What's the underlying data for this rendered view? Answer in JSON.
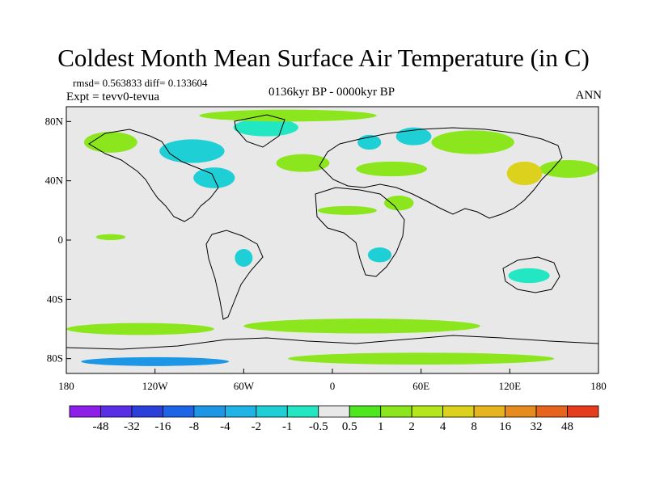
{
  "title": "Coldest Month Mean Surface Air Temperature (in C)",
  "stats": {
    "rmsd_diff": "rmsd= 0.563833 diff= 0.133604",
    "expt": "Expt = tevv0-tevua",
    "period": "0136kyr BP - 0000kyr BP",
    "season": "ANN"
  },
  "map": {
    "lat_ticks": [
      {
        "value": 80,
        "label": "80N"
      },
      {
        "value": 40,
        "label": "40N"
      },
      {
        "value": 0,
        "label": "0"
      },
      {
        "value": -40,
        "label": "40S"
      },
      {
        "value": -80,
        "label": "80S"
      }
    ],
    "lon_ticks": [
      {
        "value": -180,
        "label": "180"
      },
      {
        "value": -120,
        "label": "120W"
      },
      {
        "value": -60,
        "label": "60W"
      },
      {
        "value": 0,
        "label": "0"
      },
      {
        "value": 60,
        "label": "60E"
      },
      {
        "value": 120,
        "label": "120E"
      },
      {
        "value": 180,
        "label": "180"
      }
    ],
    "lat_range": [
      -90,
      90
    ],
    "lon_range": [
      -180,
      180
    ],
    "background_color": "#e8e8e8"
  },
  "legend": {
    "colors": [
      "#8c1fe8",
      "#5a2ee6",
      "#2b3fd9",
      "#1e64e6",
      "#1e96e6",
      "#1eb4e6",
      "#1ecfd6",
      "#23e6c3",
      "#e8e8e8",
      "#4ee61e",
      "#8ce61e",
      "#b4e61e",
      "#dcd21e",
      "#e6b41e",
      "#e68c1e",
      "#e6641e",
      "#e63c1e"
    ],
    "labels": [
      "-48",
      "-32",
      "-16",
      "-8",
      "-4",
      "-2",
      "-1",
      "-0.5",
      "0.5",
      "1",
      "2",
      "4",
      "8",
      "16",
      "32",
      "48"
    ]
  },
  "anomaly_regions": [
    {
      "id": "siberia-warm",
      "lon": 95,
      "lat": 66,
      "rx": 28,
      "ry": 8,
      "color": "#8ce61e"
    },
    {
      "id": "nw-russia-cold",
      "lon": 55,
      "lat": 70,
      "rx": 12,
      "ry": 6,
      "color": "#1ecfd6"
    },
    {
      "id": "scandinavia-cold",
      "lon": 25,
      "lat": 66,
      "rx": 8,
      "ry": 5,
      "color": "#1ecfd6"
    },
    {
      "id": "greenland-cold",
      "lon": -45,
      "lat": 76,
      "rx": 22,
      "ry": 6,
      "color": "#23e6c3"
    },
    {
      "id": "canada-cold",
      "lon": -95,
      "lat": 60,
      "rx": 22,
      "ry": 8,
      "color": "#1ecfd6"
    },
    {
      "id": "us-cold",
      "lon": -80,
      "lat": 42,
      "rx": 14,
      "ry": 7,
      "color": "#1ecfd6"
    },
    {
      "id": "alaska-warm",
      "lon": -150,
      "lat": 66,
      "rx": 18,
      "ry": 7,
      "color": "#8ce61e"
    },
    {
      "id": "arctic-warm",
      "lon": -30,
      "lat": 84,
      "rx": 60,
      "ry": 4,
      "color": "#8ce61e"
    },
    {
      "id": "n-atlantic-warm",
      "lon": -20,
      "lat": 52,
      "rx": 18,
      "ry": 6,
      "color": "#8ce61e"
    },
    {
      "id": "n-pacific-warm",
      "lon": 160,
      "lat": 48,
      "rx": 20,
      "ry": 6,
      "color": "#8ce61e"
    },
    {
      "id": "china-warm",
      "lon": 130,
      "lat": 45,
      "rx": 12,
      "ry": 8,
      "color": "#dcd21e"
    },
    {
      "id": "central-asia-warm",
      "lon": 40,
      "lat": 48,
      "rx": 24,
      "ry": 5,
      "color": "#8ce61e"
    },
    {
      "id": "sahara-warm",
      "lon": 10,
      "lat": 20,
      "rx": 20,
      "ry": 3,
      "color": "#8ce61e"
    },
    {
      "id": "arabia-warm",
      "lon": 45,
      "lat": 25,
      "rx": 10,
      "ry": 5,
      "color": "#8ce61e"
    },
    {
      "id": "e-africa-cold",
      "lon": 32,
      "lat": -10,
      "rx": 8,
      "ry": 5,
      "color": "#1ecfd6"
    },
    {
      "id": "australia-cold",
      "lon": 133,
      "lat": -24,
      "rx": 14,
      "ry": 5,
      "color": "#23e6c3"
    },
    {
      "id": "s-america-cold",
      "lon": -60,
      "lat": -12,
      "rx": 6,
      "ry": 6,
      "color": "#1ecfd6"
    },
    {
      "id": "s-ocean-warm",
      "lon": 20,
      "lat": -58,
      "rx": 80,
      "ry": 5,
      "color": "#8ce61e"
    },
    {
      "id": "s-ocean-warm-w",
      "lon": -130,
      "lat": -60,
      "rx": 50,
      "ry": 4,
      "color": "#8ce61e"
    },
    {
      "id": "antarctica-warm",
      "lon": 60,
      "lat": -80,
      "rx": 90,
      "ry": 4,
      "color": "#8ce61e"
    },
    {
      "id": "antarctica-cold",
      "lon": -120,
      "lat": -82,
      "rx": 50,
      "ry": 3,
      "color": "#1e96e6"
    },
    {
      "id": "equatorial-pacific-warm",
      "lon": -150,
      "lat": 2,
      "rx": 10,
      "ry": 2,
      "color": "#8ce61e"
    }
  ]
}
